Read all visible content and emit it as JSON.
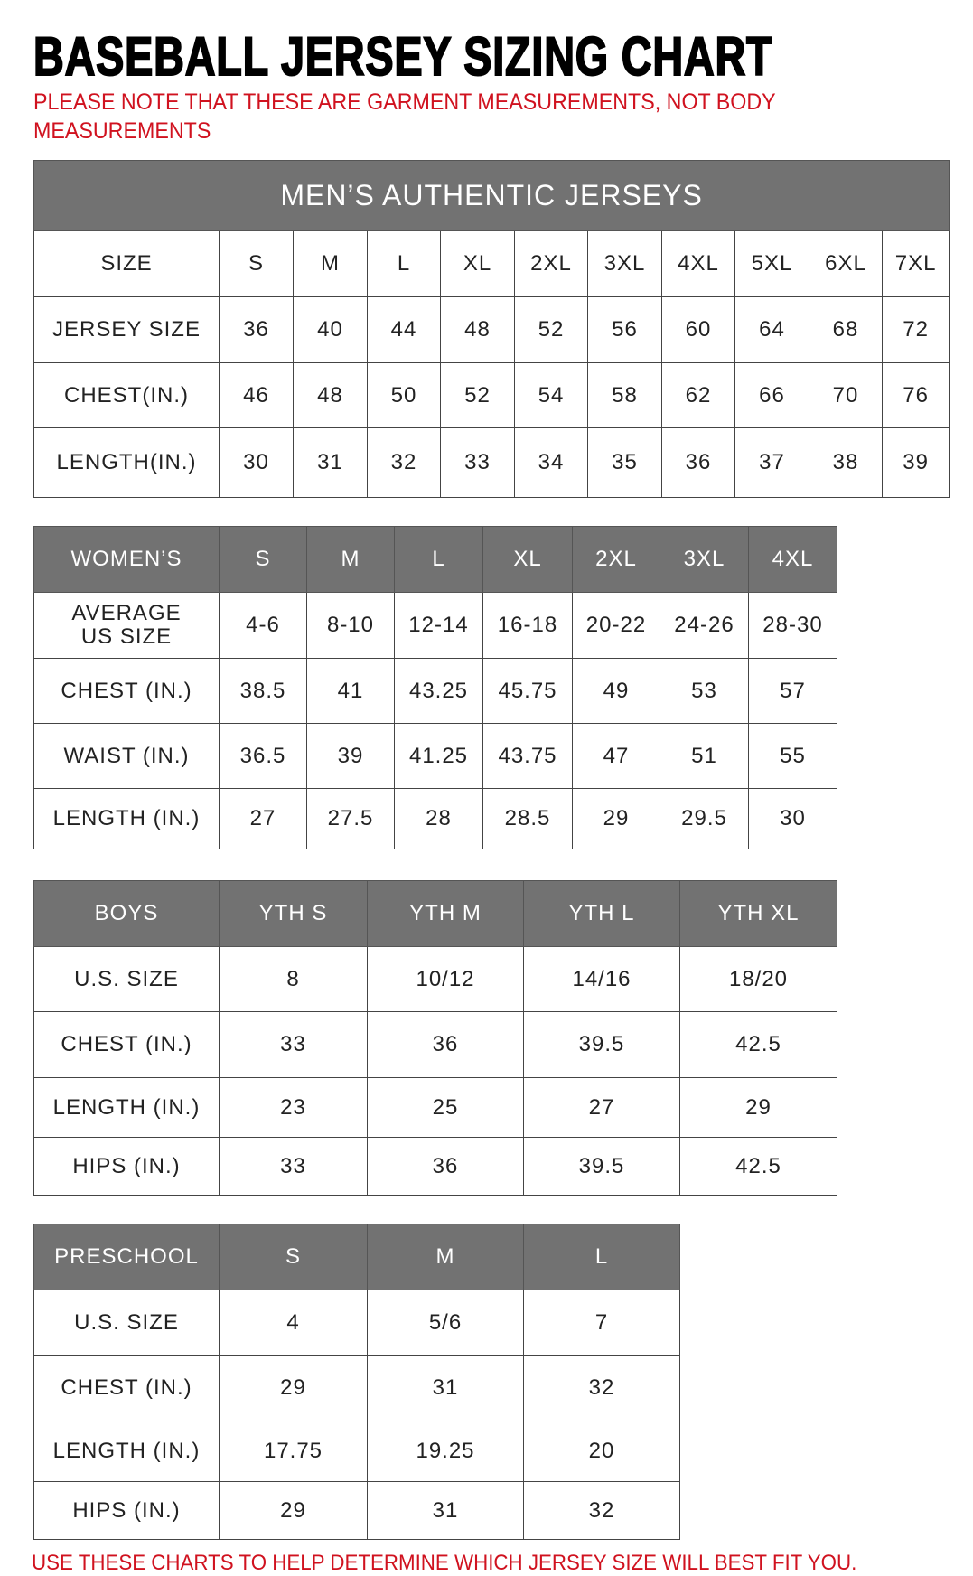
{
  "title": "BASEBALL JERSEY SIZING CHART",
  "note": "PLEASE NOTE THAT THESE ARE GARMENT MEASUREMENTS, NOT BODY MEASUREMENTS",
  "footer": "USE THESE CHARTS TO HELP DETERMINE WHICH JERSEY SIZE WILL BEST FIT YOU.",
  "colors": {
    "header_bg": "#727272",
    "note_red": "#d0121f"
  },
  "tables": [
    {
      "id": "mens",
      "banner": "MEN’S AUTHENTIC JERSEYS",
      "header": null,
      "rows": [
        [
          "SIZE",
          "S",
          "M",
          "L",
          "XL",
          "2XL",
          "3XL",
          "4XL",
          "5XL",
          "6XL",
          "7XL"
        ],
        [
          "JERSEY SIZE",
          "36",
          "40",
          "44",
          "48",
          "52",
          "56",
          "60",
          "64",
          "68",
          "72"
        ],
        [
          "CHEST(IN.)",
          "46",
          "48",
          "50",
          "52",
          "54",
          "58",
          "62",
          "66",
          "70",
          "76"
        ],
        [
          "LENGTH(IN.)",
          "30",
          "31",
          "32",
          "33",
          "34",
          "35",
          "36",
          "37",
          "38",
          "39"
        ]
      ]
    },
    {
      "id": "womens",
      "header": [
        "WOMEN’S",
        "S",
        "M",
        "L",
        "XL",
        "2XL",
        "3XL",
        "4XL"
      ],
      "rows": [
        [
          "AVERAGE US SIZE",
          "4-6",
          "8-10",
          "12-14",
          "16-18",
          "20-22",
          "24-26",
          "28-30"
        ],
        [
          "CHEST (IN.)",
          "38.5",
          "41",
          "43.25",
          "45.75",
          "49",
          "53",
          "57"
        ],
        [
          "WAIST (IN.)",
          "36.5",
          "39",
          "41.25",
          "43.75",
          "47",
          "51",
          "55"
        ],
        [
          "LENGTH (IN.)",
          "27",
          "27.5",
          "28",
          "28.5",
          "29",
          "29.5",
          "30"
        ]
      ]
    },
    {
      "id": "boys",
      "header": [
        "BOYS",
        "YTH S",
        "YTH M",
        "YTH L",
        "YTH XL"
      ],
      "rows": [
        [
          "U.S. SIZE",
          "8",
          "10/12",
          "14/16",
          "18/20"
        ],
        [
          "CHEST (IN.)",
          "33",
          "36",
          "39.5",
          "42.5"
        ],
        [
          "LENGTH (IN.)",
          "23",
          "25",
          "27",
          "29"
        ],
        [
          "HIPS (IN.)",
          "33",
          "36",
          "39.5",
          "42.5"
        ]
      ]
    },
    {
      "id": "preschool",
      "header": [
        "PRESCHOOL",
        "S",
        "M",
        "L"
      ],
      "rows": [
        [
          "U.S. SIZE",
          "4",
          "5/6",
          "7"
        ],
        [
          "CHEST (IN.)",
          "29",
          "31",
          "32"
        ],
        [
          "LENGTH (IN.)",
          "17.75",
          "19.25",
          "20"
        ],
        [
          "HIPS (IN.)",
          "29",
          "31",
          "32"
        ]
      ]
    }
  ]
}
